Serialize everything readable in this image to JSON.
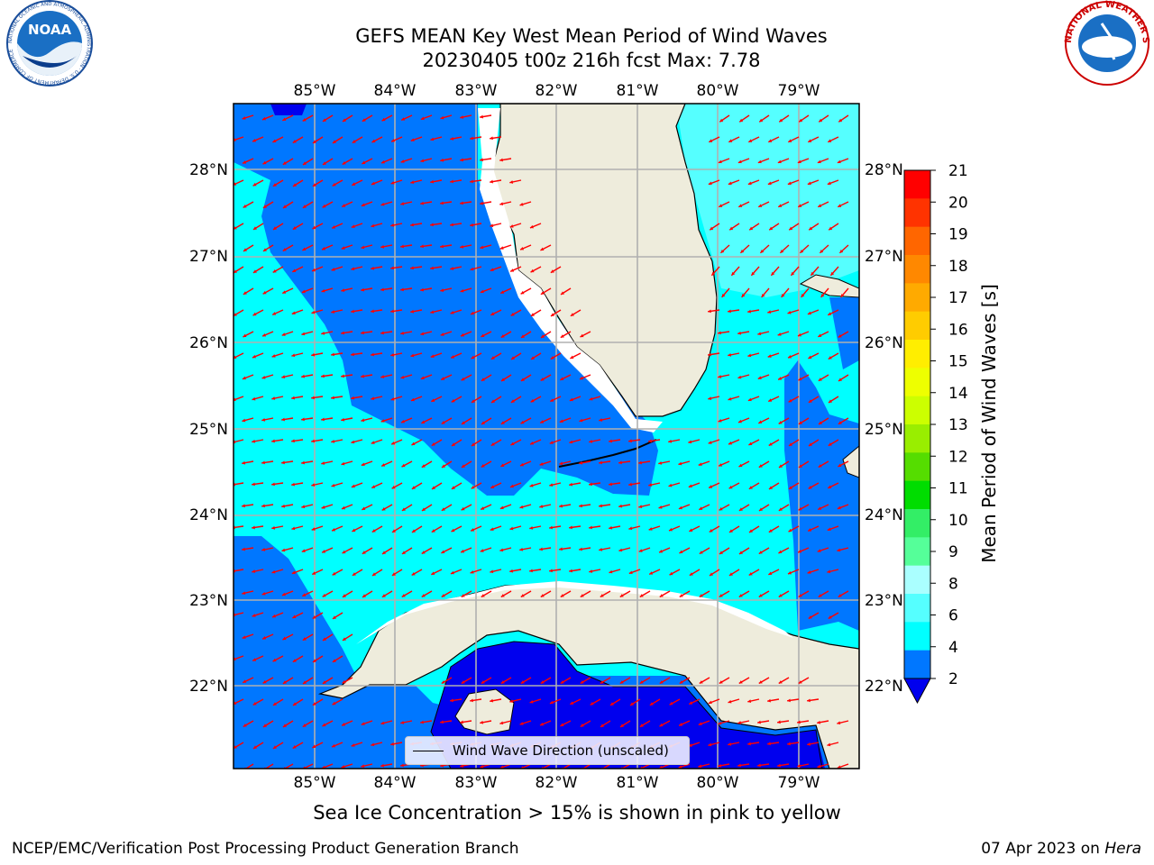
{
  "title_line1": "GEFS MEAN Key West Mean Period of Wind Waves",
  "title_line2": "20230405 t00z 216h fcst   Max: 7.78",
  "lon_labels": [
    "85°W",
    "84°W",
    "83°W",
    "82°W",
    "81°W",
    "80°W",
    "79°W"
  ],
  "lat_labels": [
    "28°N",
    "27°N",
    "26°N",
    "25°N",
    "24°N",
    "23°N",
    "22°N"
  ],
  "colorbar": {
    "label": "Mean Period of Wind Waves [s]",
    "ticks": [
      "21",
      "20",
      "19",
      "18",
      "17",
      "16",
      "15",
      "14",
      "13",
      "12",
      "11",
      "10",
      "9",
      "8",
      "6",
      "4",
      "2"
    ],
    "colors": [
      "#ff0000",
      "#ff3300",
      "#ff6600",
      "#ff8800",
      "#ffaa00",
      "#ffcc00",
      "#ffee00",
      "#eeff00",
      "#ccff00",
      "#99ee00",
      "#55dd00",
      "#00dd00",
      "#33ee66",
      "#55ff99",
      "#aaffff",
      "#55ffff",
      "#00ffff",
      "#0077ff"
    ],
    "extend_color": "#0000ee"
  },
  "legend_text": "Wind Wave Direction (unscaled)",
  "caption": "Sea Ice Concentration > 15% is shown in pink to yellow",
  "footer_left": "NCEP/EMC/Verification Post Processing Product Generation Branch",
  "footer_right_date": "07 Apr 2023 on ",
  "footer_right_host": "Hera",
  "logos": {
    "left": "NOAA",
    "left_ring": "NATIONAL OCEANIC AND ATMOSPHERIC ADMINISTRATION · U.S. DEPARTMENT OF COMMERCE",
    "right_ring": "NATIONAL WEATHER SERVICE"
  },
  "colors": {
    "land": "#eeecdc",
    "water_lo": "#0077ff",
    "water_mid": "#00ffff",
    "water_light": "#55ffff",
    "deep": "#0000ee",
    "arrow": "#ff0000",
    "grid": "#b0b0b0"
  }
}
